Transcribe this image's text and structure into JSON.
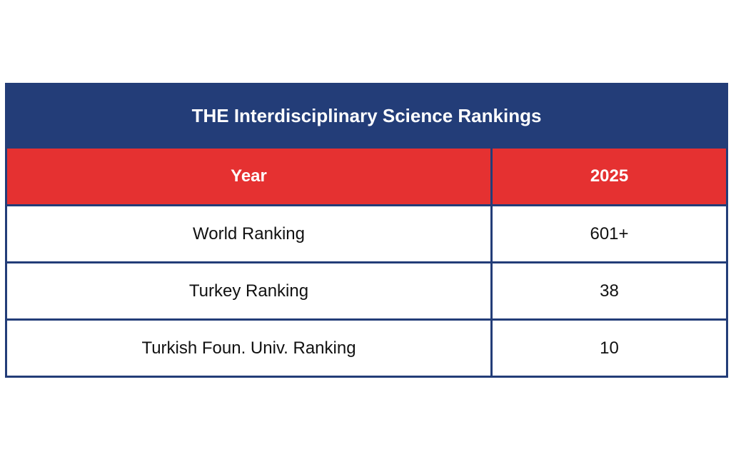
{
  "table": {
    "title": "THE Interdisciplinary Science Rankings",
    "header": {
      "label": "Year",
      "value": "2025"
    },
    "rows": [
      {
        "label": "World Ranking",
        "value": "601+"
      },
      {
        "label": "Turkey Ranking",
        "value": "38"
      },
      {
        "label": "Turkish Foun. Univ. Ranking",
        "value": "10"
      }
    ],
    "colors": {
      "title_bg": "#233d78",
      "header_bg": "#e53131",
      "border": "#233d78"
    }
  }
}
